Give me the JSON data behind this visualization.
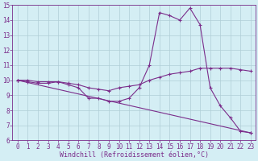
{
  "line1_x": [
    0,
    1,
    2,
    3,
    4,
    5,
    6,
    7,
    8,
    9,
    10,
    11,
    12,
    13,
    14,
    15,
    16,
    17,
    18,
    19,
    20,
    21,
    22,
    23
  ],
  "line1_y": [
    10.0,
    9.9,
    9.8,
    9.8,
    9.9,
    9.7,
    9.5,
    8.8,
    8.8,
    8.6,
    8.6,
    8.8,
    9.5,
    11.0,
    14.5,
    14.3,
    14.0,
    14.8,
    13.7,
    9.5,
    8.3,
    7.5,
    6.6,
    6.5
  ],
  "line2_x": [
    0,
    1,
    2,
    3,
    4,
    5,
    6,
    7,
    8,
    9,
    10,
    11,
    12,
    13,
    14,
    15,
    16,
    17,
    18,
    19,
    20,
    21,
    22,
    23
  ],
  "line2_y": [
    10.0,
    10.0,
    9.9,
    9.9,
    9.9,
    9.8,
    9.7,
    9.5,
    9.4,
    9.3,
    9.5,
    9.6,
    9.7,
    10.0,
    10.2,
    10.4,
    10.5,
    10.6,
    10.8,
    10.8,
    10.8,
    10.8,
    10.7,
    10.6
  ],
  "line3_x": [
    0,
    23
  ],
  "line3_y": [
    10.0,
    6.5
  ],
  "color": "#7b2d8b",
  "bg_color": "#d4eef4",
  "grid_color": "#b0cdd6",
  "xlabel": "Windchill (Refroidissement éolien,°C)",
  "xlim": [
    -0.5,
    23.5
  ],
  "ylim": [
    6,
    15
  ],
  "xticks": [
    0,
    1,
    2,
    3,
    4,
    5,
    6,
    7,
    8,
    9,
    10,
    11,
    12,
    13,
    14,
    15,
    16,
    17,
    18,
    19,
    20,
    21,
    22,
    23
  ],
  "yticks": [
    6,
    7,
    8,
    9,
    10,
    11,
    12,
    13,
    14,
    15
  ],
  "xlabel_fontsize": 6,
  "tick_fontsize": 5.5
}
